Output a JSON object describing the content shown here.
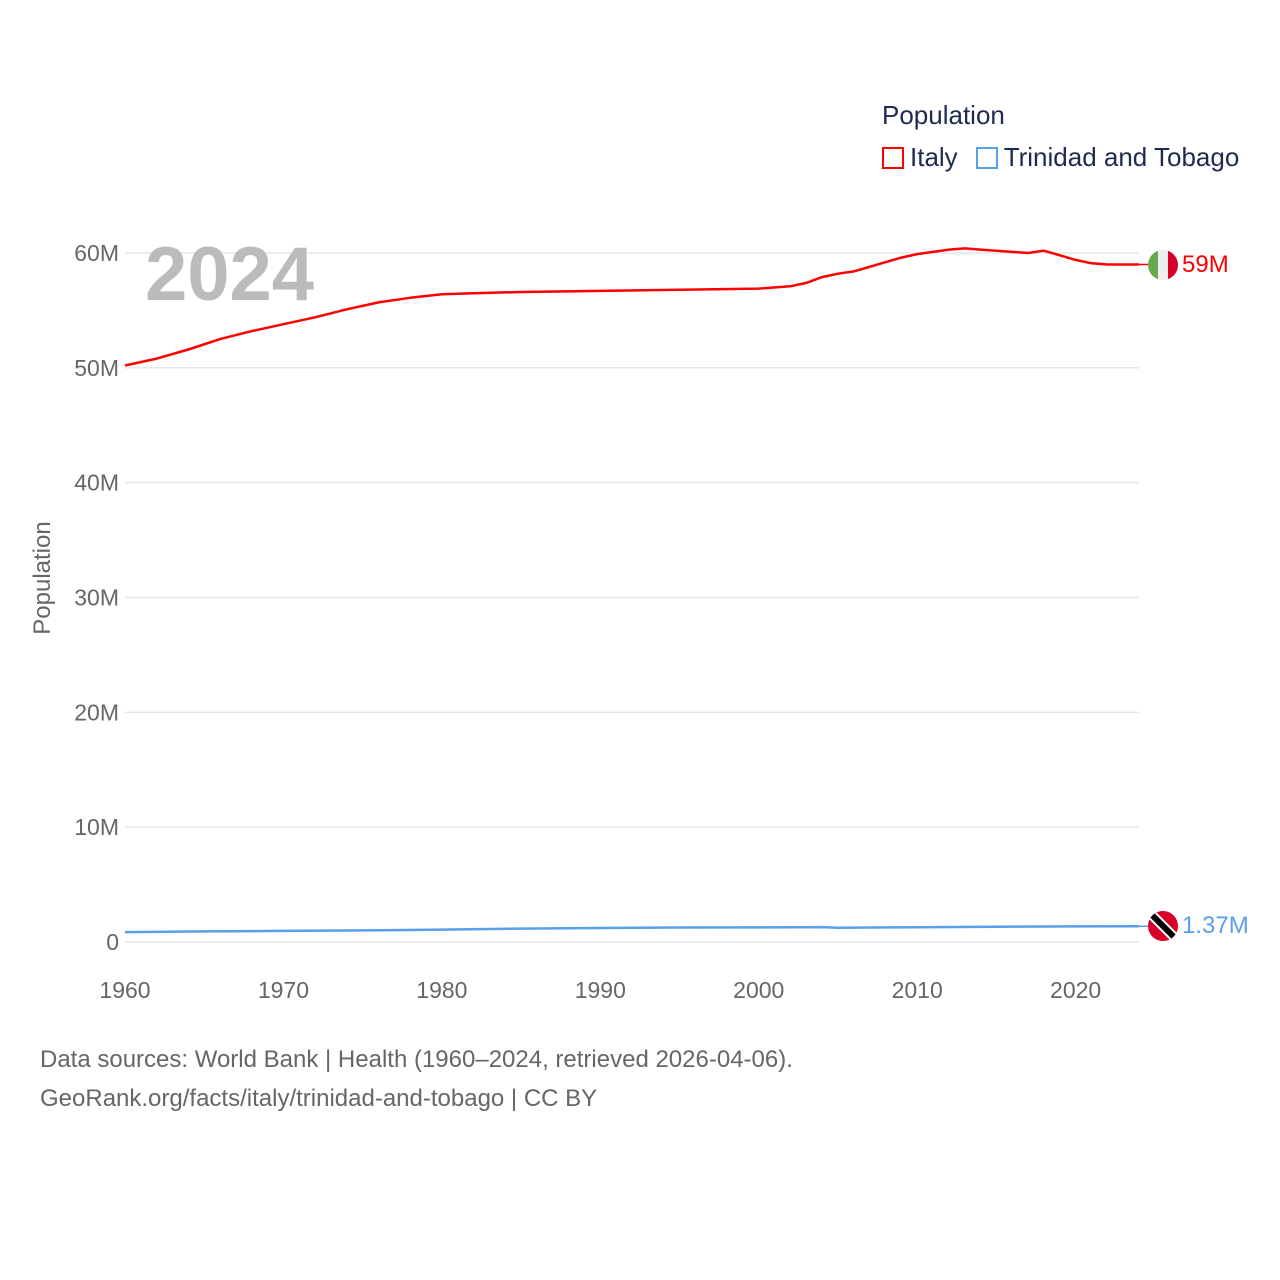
{
  "chart_data": {
    "type": "line",
    "title": "Population",
    "year_label": "2024",
    "xlabel": "",
    "ylabel": "Population",
    "xlim": [
      1960,
      2024
    ],
    "ylim": [
      0,
      60000000
    ],
    "x_ticks": [
      "1960",
      "1970",
      "1980",
      "1990",
      "2000",
      "2010",
      "2020"
    ],
    "y_ticks": [
      {
        "v": 0,
        "label": "0"
      },
      {
        "v": 10000000,
        "label": "10M"
      },
      {
        "v": 20000000,
        "label": "20M"
      },
      {
        "v": 30000000,
        "label": "30M"
      },
      {
        "v": 40000000,
        "label": "40M"
      },
      {
        "v": 50000000,
        "label": "50M"
      },
      {
        "v": 60000000,
        "label": "60M"
      }
    ],
    "grid": true,
    "legend_position": "top-right",
    "series": [
      {
        "name": "Italy",
        "color": "#ff0000",
        "end_label": "59M",
        "points": [
          [
            1960,
            50.2
          ],
          [
            1962,
            50.8
          ],
          [
            1964,
            51.6
          ],
          [
            1966,
            52.5
          ],
          [
            1968,
            53.2
          ],
          [
            1970,
            53.8
          ],
          [
            1972,
            54.4
          ],
          [
            1974,
            55.1
          ],
          [
            1976,
            55.7
          ],
          [
            1978,
            56.1
          ],
          [
            1980,
            56.4
          ],
          [
            1982,
            56.5
          ],
          [
            1985,
            56.6
          ],
          [
            1990,
            56.7
          ],
          [
            1995,
            56.8
          ],
          [
            2000,
            56.9
          ],
          [
            2002,
            57.1
          ],
          [
            2003,
            57.4
          ],
          [
            2004,
            57.9
          ],
          [
            2005,
            58.2
          ],
          [
            2006,
            58.4
          ],
          [
            2007,
            58.8
          ],
          [
            2008,
            59.2
          ],
          [
            2009,
            59.6
          ],
          [
            2010,
            59.9
          ],
          [
            2011,
            60.1
          ],
          [
            2012,
            60.3
          ],
          [
            2013,
            60.4
          ],
          [
            2014,
            60.3
          ],
          [
            2015,
            60.2
          ],
          [
            2016,
            60.1
          ],
          [
            2017,
            60.0
          ],
          [
            2018,
            60.2
          ],
          [
            2019,
            59.8
          ],
          [
            2020,
            59.4
          ],
          [
            2021,
            59.1
          ],
          [
            2022,
            59.0
          ],
          [
            2023,
            59.0
          ],
          [
            2024,
            59.0
          ]
        ]
      },
      {
        "name": "Trinidad and Tobago",
        "color": "#5aa0e8",
        "end_label": "1.37M",
        "points": [
          [
            1960,
            0.85
          ],
          [
            1965,
            0.92
          ],
          [
            1970,
            0.97
          ],
          [
            1975,
            1.01
          ],
          [
            1980,
            1.08
          ],
          [
            1985,
            1.17
          ],
          [
            1990,
            1.22
          ],
          [
            1995,
            1.26
          ],
          [
            2000,
            1.27
          ],
          [
            2004,
            1.3
          ],
          [
            2005,
            1.24
          ],
          [
            2010,
            1.29
          ],
          [
            2015,
            1.33
          ],
          [
            2020,
            1.36
          ],
          [
            2024,
            1.37
          ]
        ]
      }
    ]
  },
  "footer": {
    "line1": "Data sources: World Bank | Health (1960–2024, retrieved 2026-04-06).",
    "line2": "GeoRank.org/facts/italy/trinidad-and-tobago | CC BY"
  }
}
